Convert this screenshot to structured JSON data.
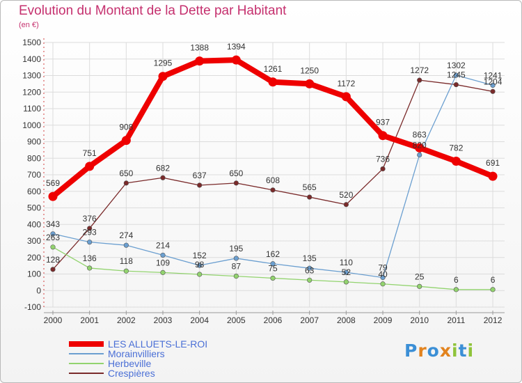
{
  "header": {
    "title": "Evolution du Montant de la Dette par Habitant",
    "unit": "(en €)"
  },
  "logo": {
    "text": "Proxiti",
    "colors": [
      "#3b8fd6",
      "#e2831e",
      "#3b8fd6",
      "#e2831e",
      "#8fc33a",
      "#3b8fd6",
      "#8fc33a"
    ]
  },
  "chart_data": {
    "type": "line",
    "title": "Evolution du Montant de la Dette par Habitant",
    "subtitle": "(en €)",
    "xlabel": "",
    "ylabel": "",
    "x": [
      "2000",
      "2001",
      "2002",
      "2003",
      "2004",
      "2005",
      "2006",
      "2007",
      "2008",
      "2009",
      "2010",
      "2011",
      "2012"
    ],
    "ylim": [
      -100,
      1500
    ],
    "yticks": [
      -100,
      0,
      100,
      200,
      300,
      400,
      500,
      600,
      700,
      800,
      900,
      1000,
      1100,
      1200,
      1300,
      1400,
      1500
    ],
    "grid": true,
    "legend_position": "bottom-left",
    "series": [
      {
        "name": "LES ALLUETS-LE-ROI",
        "color": "#ee0000",
        "width": 8,
        "values": [
          569,
          751,
          908,
          1295,
          1388,
          1394,
          1261,
          1250,
          1172,
          937,
          863,
          782,
          691
        ]
      },
      {
        "name": "Morainvilliers",
        "color": "#6b9fd0",
        "width": 1.3,
        "values": [
          343,
          293,
          274,
          214,
          152,
          195,
          162,
          135,
          110,
          79,
          820,
          1302,
          1241
        ]
      },
      {
        "name": "Herbeville",
        "color": "#92d36e",
        "width": 1.3,
        "values": [
          263,
          136,
          118,
          109,
          98,
          87,
          75,
          63,
          52,
          40,
          25,
          6,
          6
        ]
      },
      {
        "name": "Crespières",
        "color": "#7a2a2a",
        "width": 1.3,
        "values": [
          128,
          376,
          650,
          682,
          637,
          650,
          608,
          565,
          520,
          736,
          1272,
          1245,
          1204
        ]
      }
    ]
  }
}
